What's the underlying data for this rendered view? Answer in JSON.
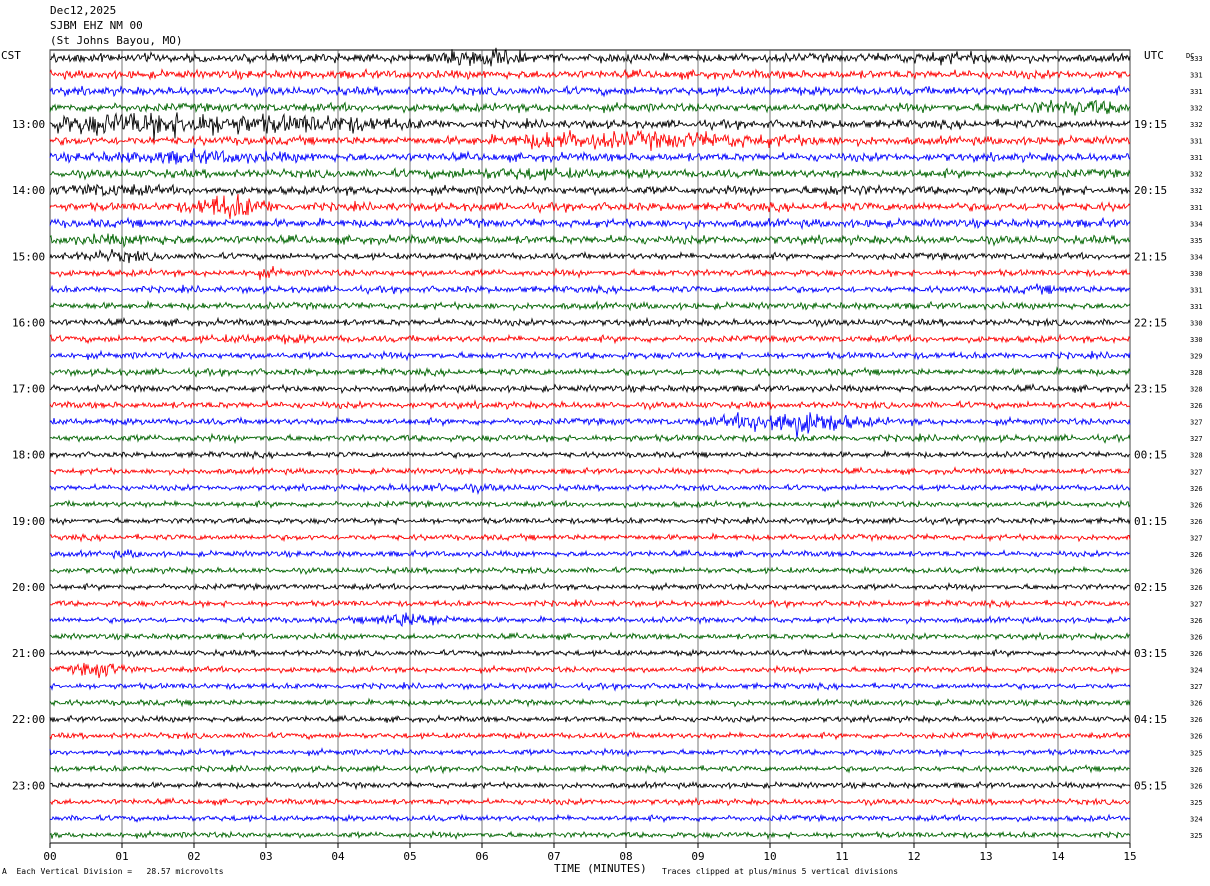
{
  "header": {
    "date": "Dec12,2025",
    "station": "SJBM EHZ NM 00",
    "location": "(St Johns Bayou, MO)"
  },
  "labels": {
    "left_tz": "CST",
    "right_tz": "UTC",
    "dc_header": "DC"
  },
  "footer": {
    "left_mark": "A",
    "scale_text": "Each Vertical Division =   28.57 microvolts",
    "x_axis_label": "TIME (MINUTES)",
    "clip_text": "Traces clipped at plus/minus 5 vertical divisions"
  },
  "chart_data": {
    "type": "line",
    "title": "",
    "xlabel": "TIME (MINUTES)",
    "ylabel": "",
    "x_ticks": [
      "00",
      "01",
      "02",
      "03",
      "04",
      "05",
      "06",
      "07",
      "08",
      "09",
      "10",
      "11",
      "12",
      "13",
      "14",
      "15"
    ],
    "xlim": [
      0,
      15
    ],
    "grid": true,
    "trace_count": 48,
    "minutes_per_trace": 15,
    "trace_colors": [
      "#000000",
      "#ff0000",
      "#0000ff",
      "#006400"
    ],
    "left_hour_labels": [
      {
        "trace": 4,
        "label": "13:00"
      },
      {
        "trace": 8,
        "label": "14:00"
      },
      {
        "trace": 12,
        "label": "15:00"
      },
      {
        "trace": 16,
        "label": "16:00"
      },
      {
        "trace": 20,
        "label": "17:00"
      },
      {
        "trace": 24,
        "label": "18:00"
      },
      {
        "trace": 28,
        "label": "19:00"
      },
      {
        "trace": 32,
        "label": "20:00"
      },
      {
        "trace": 36,
        "label": "21:00"
      },
      {
        "trace": 40,
        "label": "22:00"
      },
      {
        "trace": 44,
        "label": "23:00"
      }
    ],
    "right_hour_labels": [
      {
        "trace": 4,
        "label": "19:15"
      },
      {
        "trace": 8,
        "label": "20:15"
      },
      {
        "trace": 12,
        "label": "21:15"
      },
      {
        "trace": 16,
        "label": "22:15"
      },
      {
        "trace": 20,
        "label": "23:15"
      },
      {
        "trace": 24,
        "label": "00:15"
      },
      {
        "trace": 28,
        "label": "01:15"
      },
      {
        "trace": 32,
        "label": "02:15"
      },
      {
        "trace": 36,
        "label": "03:15"
      },
      {
        "trace": 40,
        "label": "04:15"
      },
      {
        "trace": 44,
        "label": "05:15"
      }
    ],
    "dc_offsets": [
      333,
      331,
      331,
      332,
      332,
      331,
      331,
      332,
      332,
      331,
      334,
      335,
      334,
      330,
      331,
      331,
      330,
      330,
      329,
      328,
      328,
      326,
      327,
      327,
      328,
      327,
      326,
      326,
      326,
      327,
      326,
      326,
      326,
      327,
      326,
      326,
      326,
      324,
      327,
      326,
      326,
      326,
      325,
      326,
      326,
      325,
      324,
      325
    ]
  }
}
